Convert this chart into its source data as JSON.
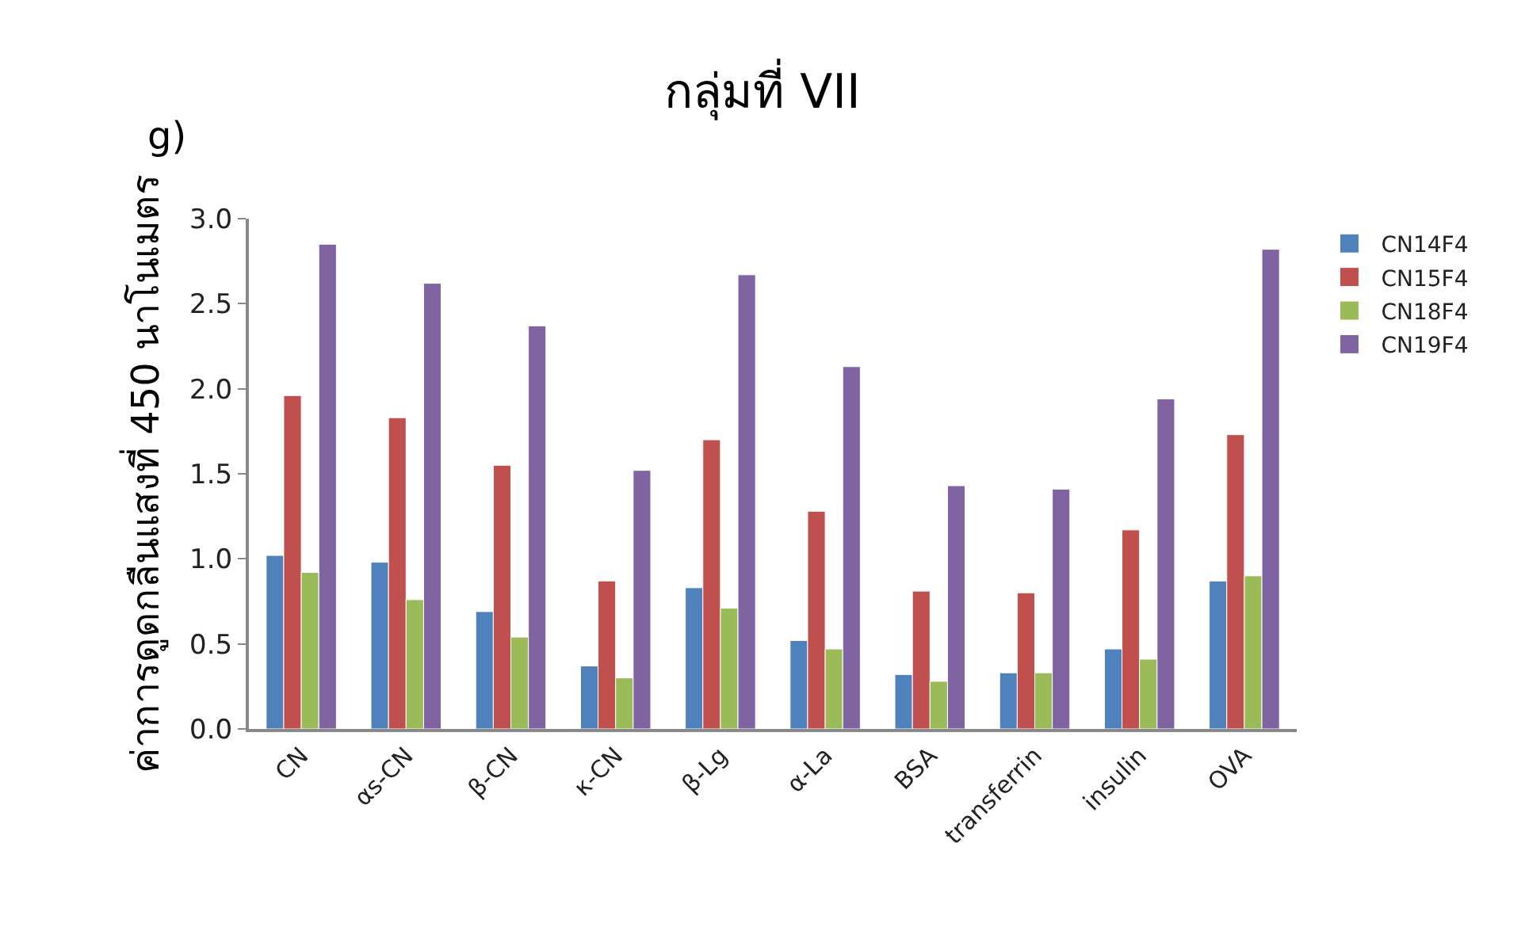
{
  "chart_data": {
    "type": "bar",
    "title": "กลุ่มที่ VII",
    "ylabel": "ค่าการดูดกลืนแสงที่ 450 นาโนเมตร",
    "annotations": [
      "g)"
    ],
    "categories": [
      "CN",
      "αs-CN",
      "β-CN",
      "κ-CN",
      "β-Lg",
      "α-La",
      "BSA",
      "transferrin",
      "insulin",
      "OVA"
    ],
    "series": [
      {
        "name": "CN14F4",
        "color": "#4f81bd",
        "values": [
          1.02,
          0.98,
          0.69,
          0.37,
          0.83,
          0.52,
          0.32,
          0.33,
          0.47,
          0.87
        ]
      },
      {
        "name": "CN15F4",
        "color": "#c0504d",
        "values": [
          1.96,
          1.83,
          1.55,
          0.87,
          1.7,
          1.28,
          0.81,
          0.8,
          1.17,
          1.73
        ]
      },
      {
        "name": "CN18F4",
        "color": "#9bbb59",
        "values": [
          0.92,
          0.76,
          0.54,
          0.3,
          0.71,
          0.47,
          0.28,
          0.33,
          0.41,
          0.9
        ]
      },
      {
        "name": "CN19F4",
        "color": "#8064a2",
        "values": [
          2.85,
          2.62,
          2.37,
          1.52,
          2.67,
          2.13,
          1.43,
          1.41,
          1.94,
          2.82
        ]
      }
    ],
    "ylim": [
      0,
      3.0
    ],
    "yticks": [
      {
        "value": 0,
        "label": "0.0"
      },
      {
        "value": 0.5,
        "label": "0.5"
      },
      {
        "value": 1.0,
        "label": "1.0"
      },
      {
        "value": 1.5,
        "label": "1.5"
      },
      {
        "value": 2.0,
        "label": "2.0"
      },
      {
        "value": 2.5,
        "label": "2.5"
      },
      {
        "value": 3.0,
        "label": "3.0"
      }
    ],
    "legend": "right"
  }
}
